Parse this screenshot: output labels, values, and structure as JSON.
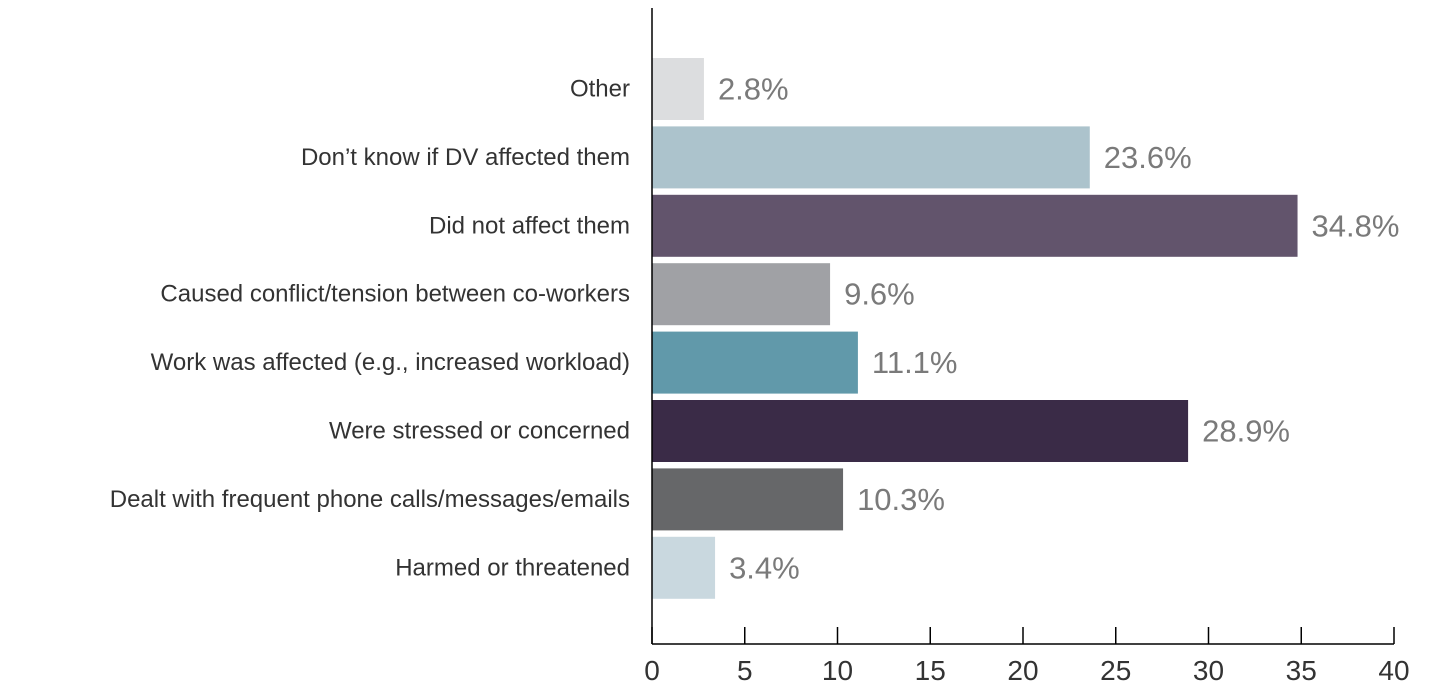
{
  "chart_data": {
    "type": "bar",
    "orientation": "horizontal",
    "title": "",
    "xlabel": "",
    "ylabel": "",
    "xlim": [
      0,
      40
    ],
    "x_ticks": [
      0,
      5,
      10,
      15,
      20,
      25,
      30,
      35,
      40
    ],
    "grid": false,
    "legend": "none",
    "categories": [
      "Other",
      "Don’t know if DV affected them",
      "Did not affect them",
      "Caused conflict/tension between co-workers",
      "Work was affected (e.g., increased workload)",
      "Were stressed or concerned",
      "Dealt with frequent phone calls/messages/emails",
      "Harmed or threatened"
    ],
    "values": [
      2.8,
      23.6,
      34.8,
      9.6,
      11.1,
      28.9,
      10.3,
      3.4
    ],
    "value_labels": [
      "2.8%",
      "23.6%",
      "34.8%",
      "9.6%",
      "11.1%",
      "28.9%",
      "10.3%",
      "3.4%"
    ],
    "colors": [
      "#dcdddf",
      "#acc3cc",
      "#62546c",
      "#a0a1a5",
      "#6199aa",
      "#3a2b47",
      "#666769",
      "#c9d8df"
    ]
  }
}
